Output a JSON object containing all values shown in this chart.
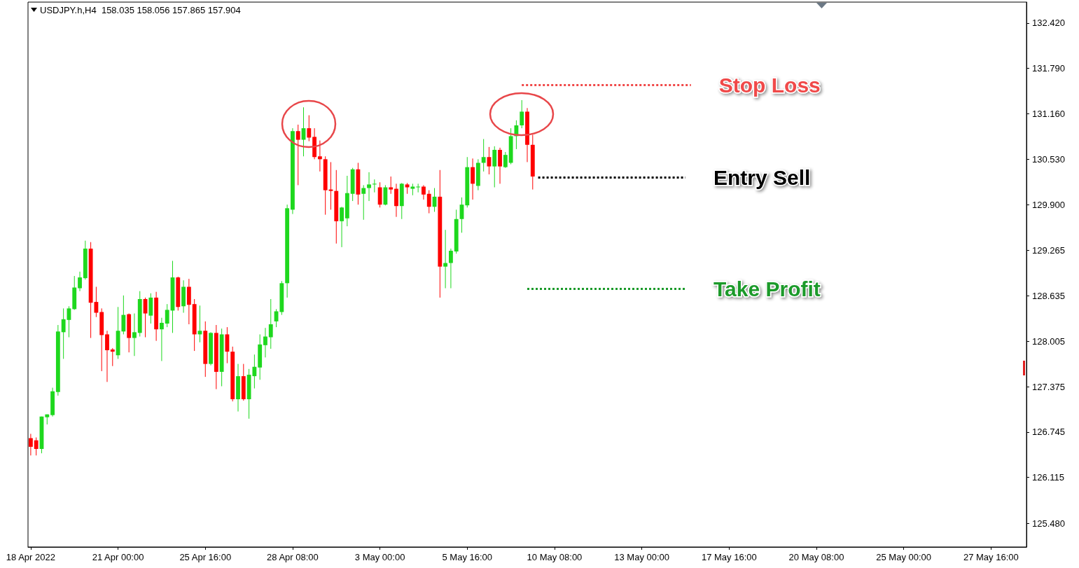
{
  "chart_data": {
    "type": "candlestick",
    "annotations": [
      "USDJPY.h,H4  158.035 158.056 157.865 157.904"
    ],
    "categories": [
      "18 Apr 2022",
      null,
      null,
      null,
      null,
      null,
      null,
      null,
      null,
      null,
      null,
      null,
      null,
      null,
      null,
      null,
      "21 Apr 00:00",
      null,
      null,
      null,
      null,
      null,
      null,
      null,
      null,
      null,
      null,
      null,
      null,
      null,
      null,
      null,
      "25 Apr 16:00",
      null,
      null,
      null,
      null,
      null,
      null,
      null,
      null,
      null,
      null,
      null,
      null,
      null,
      null,
      null,
      "28 Apr 08:00",
      null,
      null,
      null,
      null,
      null,
      null,
      null,
      null,
      null,
      null,
      null,
      null,
      null,
      null,
      null,
      "3 May 00:00",
      null,
      null,
      null,
      null,
      null,
      null,
      null,
      null,
      null,
      null,
      null,
      null,
      null,
      null,
      null,
      "5 May 16:00",
      null,
      null,
      null,
      null,
      null,
      null,
      null,
      null,
      null,
      null,
      null,
      null,
      null,
      null,
      null,
      "10 May 08:00",
      null,
      null,
      null,
      null,
      null,
      null,
      null,
      null,
      null,
      null,
      null,
      null,
      null,
      null,
      null,
      "13 May 00:00",
      null,
      null,
      null,
      null,
      null,
      null,
      null,
      null,
      null,
      null,
      null,
      null,
      null,
      null,
      null,
      "17 May 16:00",
      null,
      null,
      null,
      null,
      null,
      null,
      null,
      null,
      null,
      null,
      null,
      null,
      null,
      null,
      null,
      "20 May 08:00",
      null,
      null,
      null,
      null,
      null,
      null,
      null,
      null,
      null,
      null,
      null,
      null,
      null,
      null,
      null,
      "25 May 00:00",
      null,
      null,
      null,
      null,
      null,
      null,
      null,
      null,
      null,
      null,
      null,
      null,
      null,
      null,
      null,
      "27 May 16:00",
      null,
      null,
      null,
      null,
      null,
      null
    ],
    "ohlc": [
      [
        126.66,
        126.72,
        126.42,
        126.54
      ],
      [
        126.63,
        126.67,
        126.42,
        126.51
      ],
      [
        126.51,
        126.96,
        126.45,
        126.96
      ],
      [
        126.95,
        126.99,
        126.85,
        126.99
      ],
      [
        126.98,
        127.36,
        126.96,
        127.31
      ],
      [
        127.3,
        128.23,
        127.25,
        128.14
      ],
      [
        128.13,
        128.46,
        127.76,
        128.31
      ],
      [
        128.3,
        128.49,
        128.06,
        128.46
      ],
      [
        128.45,
        128.91,
        128.44,
        128.75
      ],
      [
        128.74,
        128.97,
        128.7,
        128.89
      ],
      [
        128.88,
        129.4,
        128.86,
        129.29
      ],
      [
        129.29,
        129.38,
        128.05,
        128.54
      ],
      [
        128.55,
        128.76,
        128.34,
        128.4
      ],
      [
        128.41,
        128.46,
        127.59,
        128.09
      ],
      [
        128.1,
        128.15,
        127.44,
        127.88
      ],
      [
        127.89,
        127.91,
        127.66,
        127.86
      ],
      [
        127.81,
        128.48,
        127.76,
        128.15
      ],
      [
        128.14,
        128.64,
        128.1,
        128.37
      ],
      [
        128.38,
        128.39,
        127.85,
        128.05
      ],
      [
        128.05,
        128.39,
        127.8,
        128.13
      ],
      [
        128.12,
        128.7,
        128.07,
        128.59
      ],
      [
        128.59,
        128.61,
        128.06,
        128.39
      ],
      [
        128.36,
        128.67,
        128.25,
        128.61
      ],
      [
        128.61,
        128.69,
        128.01,
        128.17
      ],
      [
        128.17,
        128.33,
        127.73,
        128.26
      ],
      [
        128.25,
        128.52,
        128.2,
        128.44
      ],
      [
        128.43,
        129.12,
        128.12,
        128.89
      ],
      [
        128.89,
        128.9,
        128.43,
        128.48
      ],
      [
        128.49,
        128.85,
        128.4,
        128.76
      ],
      [
        128.76,
        128.87,
        128.24,
        128.51
      ],
      [
        128.52,
        128.59,
        127.87,
        128.1
      ],
      [
        128.1,
        128.5,
        127.99,
        128.15
      ],
      [
        128.15,
        128.28,
        127.51,
        127.69
      ],
      [
        127.69,
        128.13,
        127.67,
        128.12
      ],
      [
        128.12,
        128.23,
        127.34,
        127.58
      ],
      [
        127.58,
        128.18,
        127.38,
        128.1
      ],
      [
        128.1,
        128.2,
        127.7,
        127.86
      ],
      [
        127.86,
        127.93,
        127.17,
        127.2
      ],
      [
        127.2,
        127.69,
        127.03,
        127.52
      ],
      [
        127.52,
        127.69,
        127.18,
        127.2
      ],
      [
        127.2,
        127.62,
        126.93,
        127.54
      ],
      [
        127.52,
        127.82,
        127.35,
        127.65
      ],
      [
        127.64,
        128.1,
        127.47,
        127.96
      ],
      [
        127.95,
        128.19,
        127.78,
        128.07
      ],
      [
        128.06,
        128.59,
        127.9,
        128.24
      ],
      [
        128.28,
        128.45,
        128.2,
        128.42
      ],
      [
        128.41,
        128.84,
        128.37,
        128.81
      ],
      [
        128.81,
        129.9,
        128.61,
        129.85
      ],
      [
        129.83,
        130.96,
        129.77,
        130.92
      ],
      [
        130.92,
        131.01,
        130.17,
        130.8
      ],
      [
        130.8,
        131.25,
        130.57,
        130.96
      ],
      [
        130.96,
        131.14,
        130.78,
        130.83
      ],
      [
        130.84,
        130.96,
        130.53,
        130.56
      ],
      [
        130.57,
        130.79,
        130.36,
        130.53
      ],
      [
        130.53,
        130.57,
        129.76,
        130.1
      ],
      [
        130.11,
        130.49,
        129.83,
        130.09
      ],
      [
        130.09,
        130.38,
        129.36,
        129.67
      ],
      [
        129.67,
        129.87,
        129.31,
        129.86
      ],
      [
        129.71,
        130.3,
        129.6,
        130.06
      ],
      [
        130.05,
        130.41,
        129.95,
        130.39
      ],
      [
        130.39,
        130.48,
        129.9,
        130.04
      ],
      [
        130.05,
        130.17,
        129.69,
        130.13
      ],
      [
        130.13,
        130.35,
        129.95,
        130.18
      ],
      [
        130.18,
        130.25,
        130.07,
        130.19
      ],
      [
        130.14,
        130.21,
        129.86,
        129.9
      ],
      [
        129.9,
        130.17,
        129.89,
        130.14
      ],
      [
        130.14,
        130.29,
        130.05,
        130.11
      ],
      [
        130.12,
        130.19,
        129.73,
        129.88
      ],
      [
        129.88,
        130.2,
        129.7,
        130.19
      ],
      [
        130.18,
        130.2,
        130.05,
        130.14
      ],
      [
        130.12,
        130.19,
        130.03,
        130.15
      ],
      [
        130.14,
        130.19,
        130.07,
        130.15
      ],
      [
        130.15,
        130.17,
        129.97,
        130.04
      ],
      [
        130.05,
        130.1,
        129.78,
        129.87
      ],
      [
        129.87,
        130.13,
        129.8,
        130.01
      ],
      [
        130.01,
        130.38,
        128.61,
        129.04
      ],
      [
        129.04,
        129.55,
        128.74,
        129.09
      ],
      [
        129.09,
        129.29,
        128.74,
        129.26
      ],
      [
        129.25,
        129.83,
        129.22,
        129.7
      ],
      [
        129.7,
        130.0,
        129.51,
        129.9
      ],
      [
        129.89,
        130.56,
        129.86,
        130.42
      ],
      [
        130.42,
        130.54,
        129.97,
        130.19
      ],
      [
        130.16,
        130.53,
        130.1,
        130.48
      ],
      [
        130.48,
        130.81,
        130.36,
        130.56
      ],
      [
        130.56,
        130.7,
        130.32,
        130.43
      ],
      [
        130.43,
        130.71,
        130.14,
        130.66
      ],
      [
        130.66,
        130.69,
        130.19,
        130.43
      ],
      [
        130.42,
        130.63,
        130.41,
        130.59
      ],
      [
        130.48,
        130.96,
        130.46,
        130.85
      ],
      [
        130.85,
        131.07,
        130.67,
        131.0
      ],
      [
        131.0,
        131.35,
        130.96,
        131.19
      ],
      [
        131.19,
        131.24,
        130.49,
        130.73
      ],
      [
        130.73,
        130.87,
        130.11,
        130.29
      ],
      null,
      null,
      null,
      null,
      null,
      null,
      null,
      null,
      null,
      null,
      null,
      null,
      null,
      null,
      null,
      null,
      null,
      null,
      null,
      null,
      null,
      null,
      null,
      null,
      null,
      null,
      null,
      null,
      null,
      null,
      null,
      null,
      null,
      null,
      null,
      null,
      null,
      null,
      null,
      null,
      null,
      null,
      null,
      null,
      null,
      null,
      null,
      null,
      null,
      null,
      null,
      null,
      null,
      null,
      null,
      null,
      null,
      null,
      null,
      null,
      null,
      null,
      null,
      null,
      null,
      null,
      null,
      null,
      null,
      null,
      null,
      null,
      null,
      null,
      null,
      null,
      null,
      null,
      null,
      null,
      null,
      null,
      null,
      null,
      null,
      null,
      null,
      null,
      null,
      null
    ],
    "colors": [
      "#ff0000",
      "#ff0000",
      "#1ed81e",
      "#1ed81e",
      "#1ed81e",
      "#1ed81e",
      "#1ed81e",
      "#1ed81e",
      "#1ed81e",
      "#1ed81e",
      "#1ed81e",
      "#ff0000",
      "#ff0000",
      "#ff0000",
      "#ff0000",
      "#ff0000",
      "#1ed81e",
      "#1ed81e",
      "#ff0000",
      "#1ed81e",
      "#1ed81e",
      "#ff0000",
      "#1ed81e",
      "#ff0000",
      "#1ed81e",
      "#1ed81e",
      "#1ed81e",
      "#ff0000",
      "#1ed81e",
      "#ff0000",
      "#ff0000",
      "#1ed81e",
      "#ff0000",
      "#1ed81e",
      "#ff0000",
      "#1ed81e",
      "#ff0000",
      "#ff0000",
      "#1ed81e",
      "#ff0000",
      "#1ed81e",
      "#1ed81e",
      "#1ed81e",
      "#1ed81e",
      "#1ed81e",
      "#1ed81e",
      "#1ed81e",
      "#1ed81e",
      "#1ed81e",
      "#ff0000",
      "#1ed81e",
      "#ff0000",
      "#ff0000",
      "#ff0000",
      "#ff0000",
      "#ff0000",
      "#ff0000",
      "#1ed81e",
      "#1ed81e",
      "#1ed81e",
      "#ff0000",
      "#1ed81e",
      "#1ed81e",
      "#1ed81e",
      "#ff0000",
      "#1ed81e",
      "#ff0000",
      "#ff0000",
      "#1ed81e",
      "#ff0000",
      "#1ed81e",
      "#1ed81e",
      "#ff0000",
      "#ff0000",
      "#1ed81e",
      "#ff0000",
      "#1ed81e",
      "#1ed81e",
      "#1ed81e",
      "#1ed81e",
      "#1ed81e",
      "#ff0000",
      "#1ed81e",
      "#1ed81e",
      "#ff0000",
      "#1ed81e",
      "#ff0000",
      "#1ed81e",
      "#1ed81e",
      "#1ed81e",
      "#1ed81e",
      "#ff0000",
      "#ff0000",
      null,
      null,
      null,
      null,
      null,
      null,
      null,
      null,
      null,
      null,
      null,
      null,
      null,
      null,
      null,
      null,
      null,
      null,
      null,
      null,
      null,
      null,
      null,
      null,
      null,
      null,
      null,
      null,
      null,
      null,
      null,
      null,
      null,
      null,
      null,
      null,
      null,
      null,
      null,
      null,
      null,
      null,
      null,
      null,
      null,
      null,
      null,
      null,
      null,
      null,
      null,
      null,
      null,
      null,
      null,
      null,
      null,
      null,
      null,
      null,
      null,
      null,
      null,
      null,
      null,
      null,
      null,
      null,
      null,
      null,
      null,
      null,
      null,
      null,
      null,
      null,
      null,
      null,
      null,
      null,
      null,
      null,
      null,
      null,
      null,
      null,
      null,
      null,
      null,
      null
    ],
    "ylim": [
      125.15,
      132.71
    ],
    "yticks": [
      {
        "value": 125.48,
        "label": "125.480"
      },
      {
        "value": 126.115,
        "label": "126.115"
      },
      {
        "value": 126.745,
        "label": "126.745"
      },
      {
        "value": 127.375,
        "label": "127.375"
      },
      {
        "value": 128.005,
        "label": "128.005"
      },
      {
        "value": 128.635,
        "label": "128.635"
      },
      {
        "value": 129.265,
        "label": "129.265"
      },
      {
        "value": 129.9,
        "label": "129.900"
      },
      {
        "value": 130.53,
        "label": "130.530"
      },
      {
        "value": 131.16,
        "label": "131.160"
      },
      {
        "value": 131.79,
        "label": "131.790"
      },
      {
        "value": 132.42,
        "label": "132.420"
      }
    ],
    "ref_lines": [
      {
        "axis": "y",
        "value": 131.56,
        "label": "Stop Loss",
        "color": "#f04848",
        "line_style": "dotted"
      },
      {
        "axis": "y",
        "value": 130.28,
        "label": "Entry Sell",
        "color": "#000000",
        "line_style": "dotted"
      },
      {
        "axis": "y",
        "value": 128.73,
        "label": "Take Profit",
        "color": "#1a9a2a",
        "line_style": "dotted"
      }
    ]
  }
}
